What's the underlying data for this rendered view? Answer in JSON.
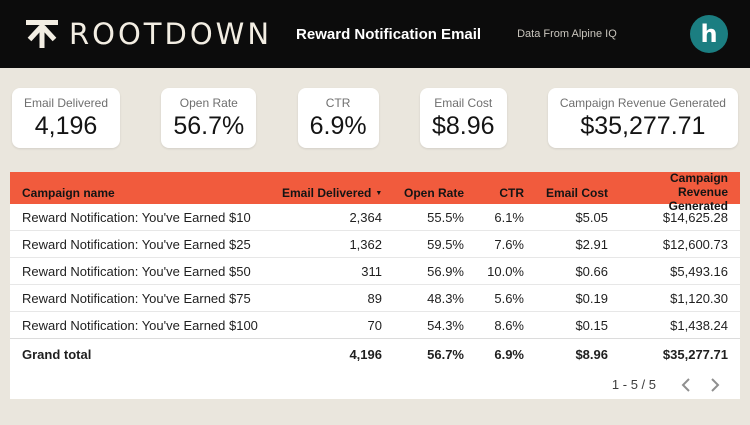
{
  "header": {
    "logo_text": "ROOTDOWN",
    "title": "Reward Notification Email",
    "subtitle": "Data From Alpine IQ",
    "avatar_letter": "h"
  },
  "colors": {
    "background": "#EAE6DD",
    "topbar": "#0C0C0C",
    "accent_orange": "#F15B3D",
    "avatar_teal": "#1B7E81"
  },
  "kpis": [
    {
      "label": "Email Delivered",
      "value": "4,196"
    },
    {
      "label": "Open Rate",
      "value": "56.7%"
    },
    {
      "label": "CTR",
      "value": "6.9%"
    },
    {
      "label": "Email Cost",
      "value": "$8.96"
    },
    {
      "label": "Campaign Revenue Generated",
      "value": "$35,277.71"
    }
  ],
  "table": {
    "columns": [
      "Campaign name",
      "Email Delivered",
      "Open Rate",
      "CTR",
      "Email Cost",
      "Campaign Revenue Generated"
    ],
    "sorted_by": "Email Delivered",
    "sort_direction": "desc",
    "rows": [
      [
        "Reward Notification: You've Earned $10",
        "2,364",
        "55.5%",
        "6.1%",
        "$5.05",
        "$14,625.28"
      ],
      [
        "Reward Notification: You've Earned $25",
        "1,362",
        "59.5%",
        "7.6%",
        "$2.91",
        "$12,600.73"
      ],
      [
        "Reward Notification: You've Earned $50",
        "311",
        "56.9%",
        "10.0%",
        "$0.66",
        "$5,493.16"
      ],
      [
        "Reward Notification: You've Earned $75",
        "89",
        "48.3%",
        "5.6%",
        "$0.19",
        "$1,120.30"
      ],
      [
        "Reward Notification: You've Earned $100",
        "70",
        "54.3%",
        "8.6%",
        "$0.15",
        "$1,438.24"
      ]
    ],
    "grand_total": [
      "Grand total",
      "4,196",
      "56.7%",
      "6.9%",
      "$8.96",
      "$35,277.71"
    ],
    "pagination": {
      "label": "1 - 5 / 5"
    }
  }
}
